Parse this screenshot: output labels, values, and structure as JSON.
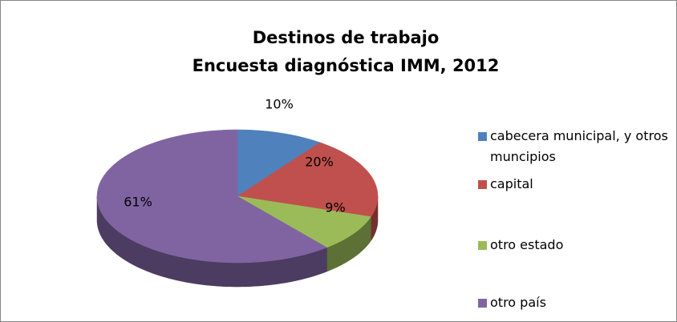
{
  "chart_data": {
    "type": "pie3d",
    "title": "Destinos de trabajo",
    "subtitle": "Encuesta diagnóstica IMM, 2012",
    "categories": [
      "cabecera municipal, y otros muncipios",
      "capital",
      "otro estado",
      "otro país"
    ],
    "values": [
      10,
      20,
      9,
      61
    ],
    "value_labels": [
      "10%",
      "20%",
      "9%",
      "61%"
    ],
    "colors": [
      "#4f81bd",
      "#c0504d",
      "#9bbb59",
      "#8064a2"
    ],
    "legend": "right"
  }
}
